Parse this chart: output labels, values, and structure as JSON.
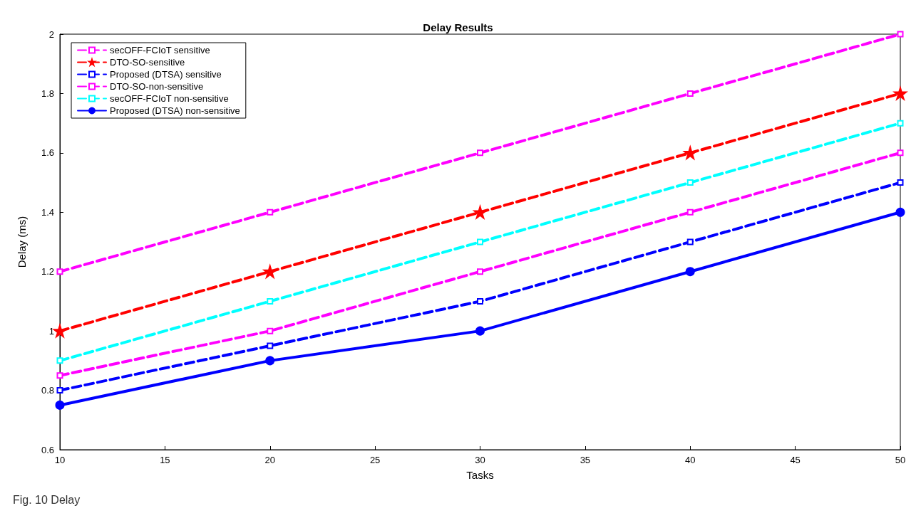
{
  "chart_data": {
    "type": "line",
    "title": "Delay Results",
    "xlabel": "Tasks",
    "ylabel": "Delay (ms)",
    "x": [
      10,
      20,
      30,
      40,
      50
    ],
    "series": [
      {
        "name": "secOFF-FCIoT sensitive",
        "color": "#ff00ff",
        "values": [
          0.85,
          1.0,
          1.2,
          1.4,
          1.6
        ],
        "marker": "square",
        "line_style": "dashed"
      },
      {
        "name": "DTO-SO-sensitive",
        "color": "#ff0000",
        "values": [
          1.0,
          1.2,
          1.4,
          1.6,
          1.8
        ],
        "marker": "star",
        "line_style": "dashed"
      },
      {
        "name": "Proposed (DTSA) sensitive",
        "color": "#0000ff",
        "values": [
          0.8,
          0.95,
          1.1,
          1.3,
          1.5
        ],
        "marker": "square",
        "line_style": "dashed"
      },
      {
        "name": "DTO-SO-non-sensitive",
        "color": "#ff00ff",
        "values": [
          1.2,
          1.4,
          1.6,
          1.8,
          2.0
        ],
        "marker": "square",
        "line_style": "dashed"
      },
      {
        "name": "secOFF-FCIoT non-sensitive",
        "color": "#00ffff",
        "values": [
          0.9,
          1.1,
          1.3,
          1.5,
          1.7
        ],
        "marker": "square",
        "line_style": "dashed"
      },
      {
        "name": "Proposed (DTSA) non-sensitive",
        "color": "#0000ff",
        "values": [
          0.75,
          0.9,
          1.0,
          1.2,
          1.4
        ],
        "marker": "circle",
        "line_style": "solid"
      }
    ],
    "xlim": [
      10,
      50
    ],
    "xticks": [
      10,
      15,
      20,
      25,
      30,
      35,
      40,
      45,
      50
    ],
    "ylim": [
      0.6,
      2
    ],
    "yticks": [
      0.6,
      0.8,
      1,
      1.2,
      1.4,
      1.6,
      1.8,
      2
    ],
    "grid": false,
    "legend": "top left",
    "annotations": [
      "Fig. 10 Delay"
    ]
  }
}
